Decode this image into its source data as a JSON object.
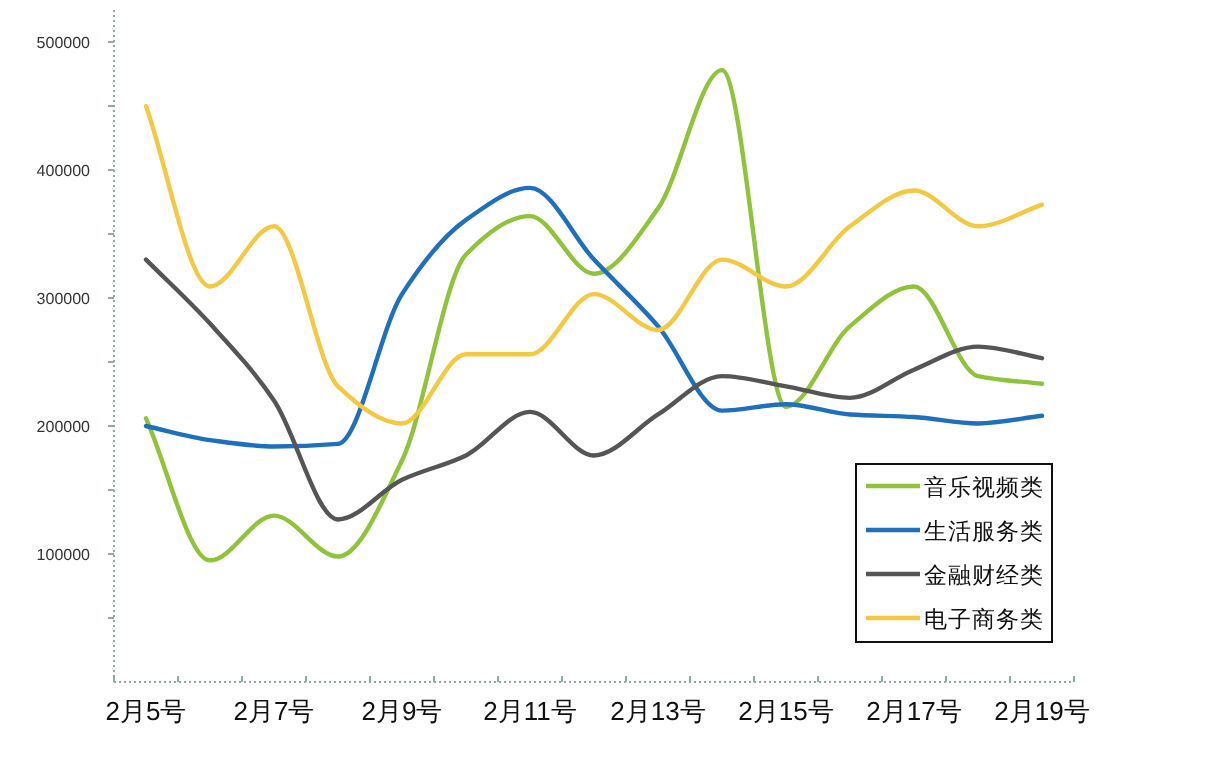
{
  "chart_data": {
    "type": "line",
    "categories": [
      "2月5号",
      null,
      "2月7号",
      null,
      "2月9号",
      null,
      "2月11号",
      null,
      "2月13号",
      null,
      "2月15号",
      null,
      "2月17号",
      null,
      "2月19号"
    ],
    "series": [
      {
        "name": "音乐视频类",
        "color": "#8fc43a",
        "values": [
          206000,
          95000,
          130000,
          98000,
          173000,
          334000,
          364000,
          319000,
          370000,
          478000,
          215000,
          278000,
          309000,
          239000,
          233000
        ]
      },
      {
        "name": "生活服务类",
        "color": "#1f6fbf",
        "values": [
          200000,
          189000,
          184000,
          186000,
          303000,
          361000,
          386000,
          330000,
          278000,
          212000,
          217000,
          209000,
          207000,
          202000,
          208000
        ]
      },
      {
        "name": "金融财经类",
        "color": "#555555",
        "values": [
          330000,
          280000,
          220000,
          127000,
          158000,
          177000,
          211000,
          177000,
          209000,
          239000,
          231000,
          222000,
          244000,
          262000,
          253000
        ]
      },
      {
        "name": "电子商务类",
        "color": "#f5c842",
        "values": [
          450000,
          309000,
          356000,
          231000,
          202000,
          256000,
          256000,
          303000,
          275000,
          330000,
          309000,
          356000,
          384000,
          356000,
          373000
        ]
      }
    ],
    "ylim": [
      0,
      525000
    ],
    "yticks": [
      {
        "value": 50000,
        "label": null
      },
      100000,
      {
        "value": 150000,
        "label": null
      },
      200000,
      {
        "value": 250000,
        "label": null
      },
      300000,
      {
        "value": 350000,
        "label": null
      },
      400000,
      {
        "value": 450000,
        "label": null
      },
      500000
    ],
    "legend": "bottom right"
  }
}
